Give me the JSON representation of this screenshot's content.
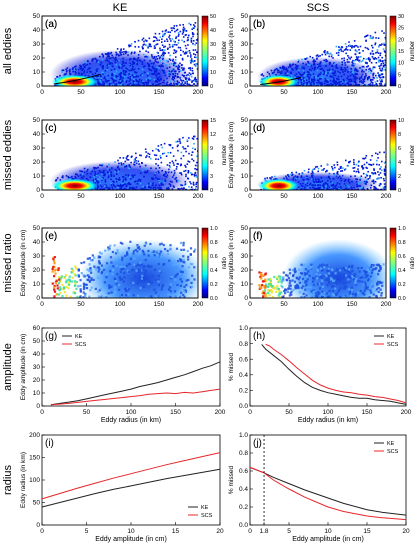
{
  "column_titles": [
    "KE",
    "SCS"
  ],
  "row_titles": [
    "all eddies",
    "missed eddies",
    "missed ratio",
    "amplitude",
    "radius"
  ],
  "chart_data": [
    {
      "type": "heatmap",
      "panel": "(a)",
      "column": "KE",
      "ylabel": "",
      "xlim": [
        0,
        200
      ],
      "ylim": [
        0,
        50
      ],
      "xticks": [
        0,
        50,
        100,
        150,
        200
      ],
      "yticks": [
        0,
        10,
        20,
        30,
        40,
        50
      ],
      "colorbar": {
        "label": "number",
        "range": [
          0,
          50
        ],
        "ticks": [
          0,
          10,
          20,
          30,
          40,
          50
        ]
      },
      "has_curve": true
    },
    {
      "type": "heatmap",
      "panel": "(b)",
      "column": "SCS",
      "ylabel": "Eddy amplitude (in cm)",
      "xlim": [
        0,
        200
      ],
      "ylim": [
        0,
        50
      ],
      "xticks": [
        0,
        50,
        100,
        150,
        200
      ],
      "yticks": [
        0,
        10,
        20,
        30,
        40,
        50
      ],
      "colorbar": {
        "label": "number",
        "range": [
          0,
          30
        ],
        "ticks": [
          0,
          5,
          10,
          15,
          20,
          25,
          30
        ]
      },
      "has_curve": true
    },
    {
      "type": "heatmap",
      "panel": "(c)",
      "column": "KE",
      "ylabel": "",
      "xlim": [
        0,
        200
      ],
      "ylim": [
        0,
        50
      ],
      "xticks": [
        0,
        50,
        100,
        150,
        200
      ],
      "yticks": [
        0,
        10,
        20,
        30,
        40,
        50
      ],
      "colorbar": {
        "label": "number",
        "range": [
          0,
          15
        ],
        "ticks": [
          0,
          3,
          6,
          9,
          12,
          15
        ]
      }
    },
    {
      "type": "heatmap",
      "panel": "(d)",
      "column": "SCS",
      "ylabel": "Eddy amplitude (in cm)",
      "xlim": [
        0,
        200
      ],
      "ylim": [
        0,
        50
      ],
      "xticks": [
        0,
        50,
        100,
        150,
        200
      ],
      "yticks": [
        0,
        10,
        20,
        30,
        40,
        50
      ],
      "colorbar": {
        "label": "number",
        "range": [
          0,
          10
        ],
        "ticks": [
          0,
          2,
          4,
          6,
          8,
          10
        ]
      }
    },
    {
      "type": "heatmap",
      "panel": "(e)",
      "column": "KE",
      "ylabel": "Eddy amplitude (in cm)",
      "xlim": [
        0,
        200
      ],
      "ylim": [
        0,
        50
      ],
      "xticks": [
        0,
        50,
        100,
        150,
        200
      ],
      "yticks": [
        0,
        10,
        20,
        30,
        40,
        50
      ],
      "colorbar": {
        "label": "ratio",
        "range": [
          0,
          1
        ],
        "ticks": [
          "0.0",
          "0.2",
          "0.4",
          "0.6",
          "0.8",
          "1.0"
        ]
      }
    },
    {
      "type": "heatmap",
      "panel": "(f)",
      "column": "SCS",
      "ylabel": "Eddy amplitude (in cm)",
      "xlim": [
        0,
        200
      ],
      "ylim": [
        0,
        50
      ],
      "xticks": [
        0,
        50,
        100,
        150,
        200
      ],
      "yticks": [
        0,
        10,
        20,
        30,
        40,
        50
      ],
      "colorbar": {
        "label": "ratio",
        "range": [
          0,
          1
        ],
        "ticks": [
          "0.0",
          "0.2",
          "0.4",
          "0.6",
          "0.8",
          "1.0"
        ]
      }
    },
    {
      "type": "line",
      "panel": "(g)",
      "column": "KE",
      "xlabel": "Eddy radius (in km)",
      "ylabel": "Eddy amplitude (in cm)",
      "xlim": [
        0,
        200
      ],
      "ylim": [
        0,
        60
      ],
      "xticks": [
        0,
        50,
        100,
        150,
        200
      ],
      "yticks": [
        0,
        10,
        20,
        30,
        40,
        50,
        60
      ],
      "legend": "top-left",
      "series": [
        {
          "name": "KE",
          "color": "#222222",
          "x": [
            10,
            20,
            30,
            40,
            50,
            60,
            70,
            80,
            90,
            100,
            110,
            120,
            130,
            140,
            150,
            160,
            170,
            180,
            190,
            200
          ],
          "y": [
            1,
            2,
            3,
            4,
            5.5,
            7,
            8.5,
            10,
            11.5,
            13,
            15,
            16.5,
            18,
            20,
            22,
            24,
            26.5,
            29,
            31,
            34
          ]
        },
        {
          "name": "SCS",
          "color": "#e8262a",
          "x": [
            10,
            20,
            30,
            40,
            50,
            60,
            70,
            80,
            90,
            100,
            110,
            120,
            130,
            140,
            150,
            160,
            170,
            180,
            190,
            200
          ],
          "y": [
            1,
            1.5,
            2,
            2.8,
            3.5,
            4.3,
            5,
            5.8,
            6.5,
            7.2,
            8,
            9,
            9.5,
            10,
            9.5,
            10.5,
            10,
            11,
            12,
            13
          ]
        }
      ]
    },
    {
      "type": "line",
      "panel": "(h)",
      "column": "SCS",
      "xlabel": "Eddy radius (in km)",
      "ylabel": "% missed",
      "xlim": [
        0,
        200
      ],
      "ylim": [
        0,
        1
      ],
      "xticks": [
        0,
        50,
        100,
        150,
        200
      ],
      "yticks": [
        "0.0",
        "0.2",
        "0.4",
        "0.6",
        "0.8",
        "1.0"
      ],
      "legend": "top-right",
      "series": [
        {
          "name": "KE",
          "color": "#222222",
          "x": [
            15,
            20,
            25,
            30,
            40,
            50,
            60,
            70,
            80,
            90,
            100,
            110,
            120,
            130,
            140,
            150,
            160,
            170,
            180,
            190,
            200
          ],
          "y": [
            0.79,
            0.73,
            0.69,
            0.65,
            0.57,
            0.47,
            0.38,
            0.3,
            0.24,
            0.2,
            0.17,
            0.15,
            0.13,
            0.11,
            0.1,
            0.1,
            0.08,
            0.07,
            0.06,
            0.04,
            0.02
          ]
        },
        {
          "name": "SCS",
          "color": "#e8262a",
          "x": [
            20,
            25,
            30,
            40,
            50,
            60,
            70,
            80,
            90,
            100,
            110,
            120,
            130,
            140,
            150,
            160,
            170,
            180,
            190,
            200
          ],
          "y": [
            0.79,
            0.77,
            0.73,
            0.66,
            0.58,
            0.49,
            0.41,
            0.33,
            0.27,
            0.23,
            0.2,
            0.18,
            0.17,
            0.15,
            0.14,
            0.12,
            0.11,
            0.09,
            0.07,
            0.04
          ]
        }
      ]
    },
    {
      "type": "line",
      "panel": "(i)",
      "column": "KE",
      "xlabel": "Eddy amplitude (in cm)",
      "ylabel": "Eddy radius (in km)",
      "xlim": [
        0,
        20
      ],
      "ylim": [
        0,
        200
      ],
      "xticks": [
        0,
        5,
        10,
        15,
        20
      ],
      "yticks": [
        0,
        50,
        100,
        150,
        200
      ],
      "legend": "bottom-right",
      "series": [
        {
          "name": "KE",
          "color": "#222222",
          "x": [
            0,
            2,
            4,
            6,
            8,
            10,
            12,
            14,
            16,
            18,
            20
          ],
          "y": [
            40,
            50,
            60,
            70,
            79,
            87,
            95,
            103,
            110,
            117,
            124
          ]
        },
        {
          "name": "SCS",
          "color": "#e8262a",
          "x": [
            0,
            2,
            4,
            6,
            8,
            10,
            12,
            14,
            16,
            18,
            20
          ],
          "y": [
            58,
            70,
            82,
            93,
            104,
            114,
            124,
            134,
            143,
            152,
            161
          ]
        }
      ]
    },
    {
      "type": "line",
      "panel": "(j)",
      "column": "SCS",
      "xlabel": "Eddy amplitude (in cm)",
      "ylabel": "% missed",
      "xlim": [
        0,
        20
      ],
      "ylim": [
        0,
        1
      ],
      "xticks": [
        "0",
        "1.8",
        "5",
        "10",
        "15",
        "20"
      ],
      "yticks": [
        "0.0",
        "0.2",
        "0.4",
        "0.6",
        "0.8",
        "1.0"
      ],
      "legend": "top-right",
      "vline": 1.8,
      "series": [
        {
          "name": "KE",
          "color": "#222222",
          "x": [
            0,
            1.8,
            3,
            5,
            7,
            10,
            12,
            15,
            17,
            20
          ],
          "y": [
            0.64,
            0.58,
            0.53,
            0.46,
            0.39,
            0.3,
            0.24,
            0.17,
            0.14,
            0.11
          ]
        },
        {
          "name": "SCS",
          "color": "#e8262a",
          "x": [
            0,
            1.8,
            3,
            5,
            7,
            10,
            12,
            15,
            17,
            20
          ],
          "y": [
            0.64,
            0.58,
            0.5,
            0.4,
            0.31,
            0.2,
            0.15,
            0.1,
            0.08,
            0.06
          ]
        }
      ]
    }
  ]
}
